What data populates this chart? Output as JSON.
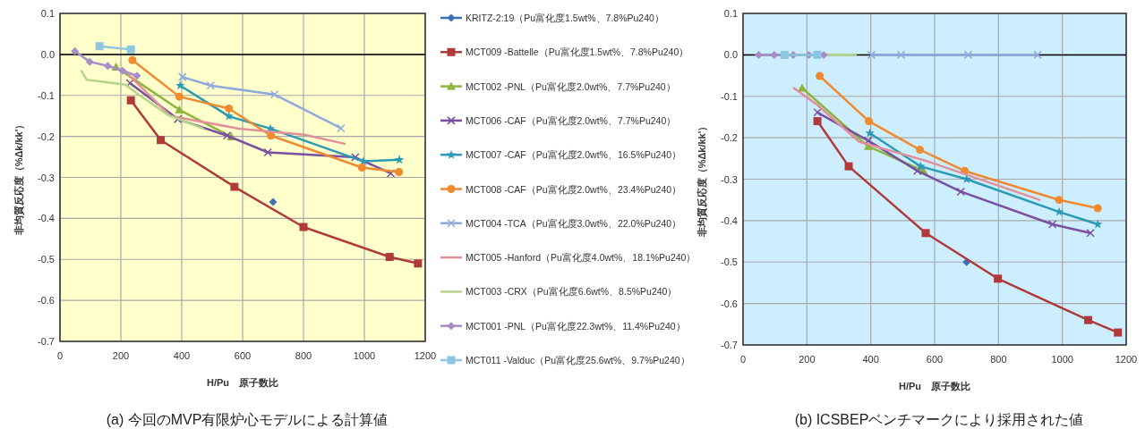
{
  "chart_data": [
    {
      "type": "line",
      "title": "(a)  今回のMVP有限炉心モデルによる計算値",
      "xlabel": "H/Pu　原子数比",
      "ylabel": "非均質反応度（%Δk/kk'）",
      "xlim": [
        0,
        1200
      ],
      "ylim": [
        -0.7,
        0.1
      ],
      "xticks": [
        0,
        200,
        400,
        600,
        800,
        1000,
        1200
      ],
      "yticks": [
        0.1,
        {
          "value": 0,
          "label": "0.0"
        },
        -0.1,
        -0.2,
        -0.3,
        -0.4,
        -0.5,
        -0.6,
        -0.7
      ],
      "grid": true,
      "legend": "right",
      "ref_lines": [
        {
          "axis": "y",
          "value": 0,
          "color": "#000000"
        }
      ],
      "series": [
        {
          "name": "KRITZ-2:19（Pu富化度1.5wt%、7.8%Pu240）",
          "color": "#3f6fb5",
          "marker": "diamond",
          "x": [
            700
          ],
          "values": [
            -0.36
          ]
        },
        {
          "name": "MCT009 -Battelle（Pu富化度1.5wt%、7.8%Pu240）",
          "color": "#b03a3a",
          "marker": "square",
          "x": [
            233,
            331,
            573,
            800,
            1083,
            1176
          ],
          "values": [
            -0.112,
            -0.209,
            -0.323,
            -0.421,
            -0.494,
            -0.51
          ]
        },
        {
          "name": "MCT002 -PNL（Pu富化度2.0wt%、7.7%Pu240）",
          "color": "#8db53c",
          "marker": "triangle",
          "x": [
            184,
            392,
            563
          ],
          "values": [
            -0.031,
            -0.135,
            -0.201
          ]
        },
        {
          "name": "MCT006 -CAF（Pu富化度2.0wt%、7.7%Pu240）",
          "color": "#7a4fa0",
          "marker": "cross",
          "x": [
            230,
            387,
            549,
            683,
            970,
            1087
          ],
          "values": [
            -0.07,
            -0.158,
            -0.198,
            -0.239,
            -0.251,
            -0.29
          ]
        },
        {
          "name": "MCT007 -CAF（Pu富化度2.0wt%、16.5%Pu240）",
          "color": "#2a9bb5",
          "marker": "star",
          "x": [
            395,
            555,
            691,
            997,
            1115
          ],
          "values": [
            -0.076,
            -0.151,
            -0.181,
            -0.261,
            -0.257
          ]
        },
        {
          "name": "MCT008 -CAF（Pu富化度2.0wt%、23.4%Pu240）",
          "color": "#f08a30",
          "marker": "circle",
          "x": [
            238,
            392,
            555,
            693,
            992,
            1114
          ],
          "values": [
            -0.014,
            -0.103,
            -0.132,
            -0.198,
            -0.276,
            -0.287
          ]
        },
        {
          "name": "MCT004 -TCA（Pu富化度3.0wt%、22.0%Pu240）",
          "color": "#8ea9db",
          "marker": "cross",
          "x": [
            402,
            495,
            705,
            923
          ],
          "values": [
            -0.055,
            -0.076,
            -0.098,
            -0.18
          ]
        },
        {
          "name": "MCT005 -Hanford（Pu富化度4.0wt%、18.1%Pu240）",
          "color": "#e0909a",
          "marker": "none",
          "x": [
            225,
            362,
            588,
            803,
            935
          ],
          "values": [
            -0.049,
            -0.15,
            -0.181,
            -0.196,
            -0.218
          ]
        },
        {
          "name": "MCT003 -CRX（Pu富化度6.6wt%、8.5%Pu240）",
          "color": "#b5d68a",
          "marker": "none",
          "x": [
            71,
            88,
            215,
            255,
            353,
            470
          ],
          "values": [
            -0.041,
            -0.062,
            -0.074,
            -0.096,
            -0.147,
            -0.181
          ]
        },
        {
          "name": "MCT001 -PNL（Pu富化度22.3wt%、11.4%Pu240）",
          "color": "#a88cc8",
          "marker": "diamond",
          "x": [
            49,
            98,
            157,
            206,
            253
          ],
          "values": [
            0.008,
            -0.018,
            -0.028,
            -0.04,
            -0.052
          ]
        },
        {
          "name": "MCT011 -Valduc（Pu富化度25.6wt%、9.7%Pu240）",
          "color": "#8cc6e0",
          "marker": "square",
          "x": [
            130,
            233
          ],
          "values": [
            0.02,
            0.012
          ]
        }
      ]
    },
    {
      "type": "line",
      "title": "(b)  ICSBEPベンチマークにより採用された値",
      "xlabel": "H/Pu　原子数比",
      "ylabel": "非均質反応度（%Δk/kk'）",
      "xlim": [
        0,
        1200
      ],
      "ylim": [
        -0.7,
        0.1
      ],
      "xticks": [
        0,
        200,
        400,
        600,
        800,
        1000,
        1200
      ],
      "yticks": [
        0.1,
        {
          "value": 0,
          "label": "0.0"
        },
        -0.1,
        -0.2,
        -0.3,
        -0.4,
        -0.5,
        -0.6,
        -0.7
      ],
      "grid": true,
      "ref_lines": [
        {
          "axis": "y",
          "value": 0,
          "color": "#000000"
        }
      ],
      "series": [
        {
          "color": "#b5d68a",
          "marker": "none",
          "x": [
            255,
            353
          ],
          "values": [
            0,
            0
          ]
        },
        {
          "color": "#8ea9db",
          "marker": "cross",
          "x": [
            402,
            495,
            705,
            923
          ],
          "values": [
            0,
            0,
            0,
            0
          ]
        },
        {
          "color": "#a88cc8",
          "marker": "diamond",
          "x": [
            49,
            98,
            157,
            206,
            253
          ],
          "values": [
            0,
            0,
            0,
            0,
            0
          ]
        },
        {
          "color": "#8cc6e0",
          "marker": "square",
          "x": [
            130,
            233
          ],
          "values": [
            0,
            0
          ]
        },
        {
          "color": "#3f6fb5",
          "marker": "diamond",
          "x": [
            700
          ],
          "values": [
            -0.5
          ]
        },
        {
          "color": "#b03a3a",
          "marker": "square",
          "x": [
            233,
            331,
            572,
            798,
            1081,
            1174
          ],
          "values": [
            -0.16,
            -0.269,
            -0.43,
            -0.54,
            -0.64,
            -0.67
          ]
        },
        {
          "color": "#8db53c",
          "marker": "triangle",
          "x": [
            185,
            392,
            565
          ],
          "values": [
            -0.08,
            -0.221,
            -0.28
          ]
        },
        {
          "color": "#7a4fa0",
          "marker": "cross",
          "x": [
            233,
            392,
            546,
            682,
            969,
            1088
          ],
          "values": [
            -0.139,
            -0.207,
            -0.28,
            -0.33,
            -0.409,
            -0.43
          ]
        },
        {
          "color": "#2a9bb5",
          "marker": "star",
          "x": [
            397,
            556,
            700,
            990,
            1111
          ],
          "values": [
            -0.189,
            -0.269,
            -0.3,
            -0.379,
            -0.409
          ]
        },
        {
          "color": "#f08a30",
          "marker": "circle",
          "x": [
            240,
            394,
            554,
            694,
            990,
            1111
          ],
          "values": [
            -0.051,
            -0.16,
            -0.229,
            -0.28,
            -0.35,
            -0.37
          ]
        },
        {
          "color": "#e0909a",
          "marker": "none",
          "x": [
            159,
            233,
            364,
            579,
            929
          ],
          "values": [
            -0.08,
            -0.121,
            -0.21,
            -0.257,
            -0.35
          ]
        }
      ]
    }
  ]
}
